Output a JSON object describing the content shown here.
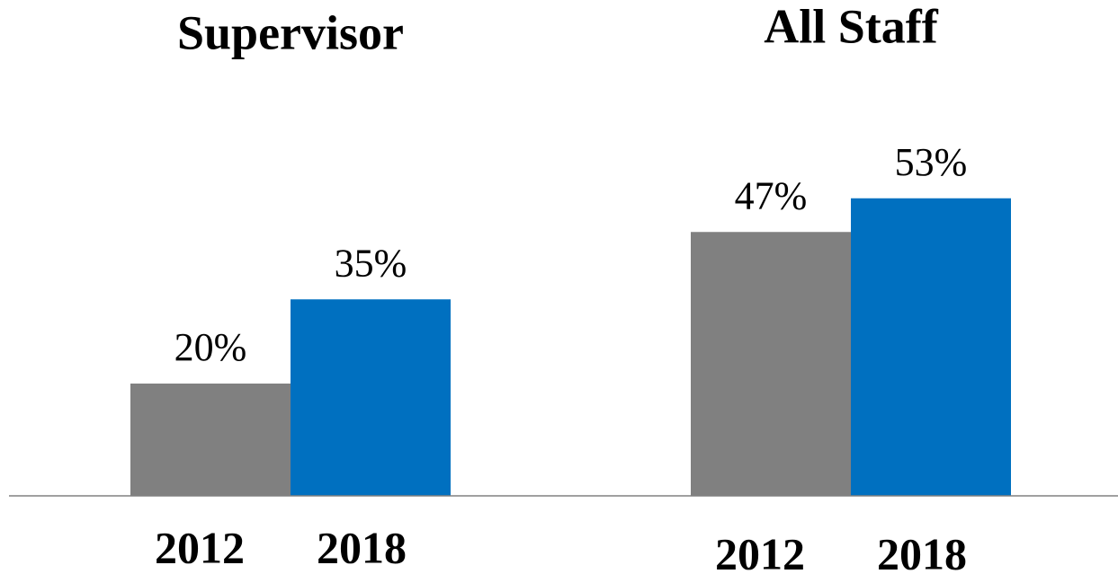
{
  "chart_data": {
    "type": "bar",
    "categories": [
      "Supervisor",
      "All Staff"
    ],
    "series": [
      {
        "name": "2012",
        "color": "#808080",
        "values": [
          20,
          47
        ],
        "value_labels": [
          "20%",
          "47%"
        ]
      },
      {
        "name": "2018",
        "color": "#0070c0",
        "values": [
          35,
          53
        ],
        "value_labels": [
          "35%",
          "53%"
        ]
      }
    ],
    "ylim": [
      0,
      88
    ]
  }
}
